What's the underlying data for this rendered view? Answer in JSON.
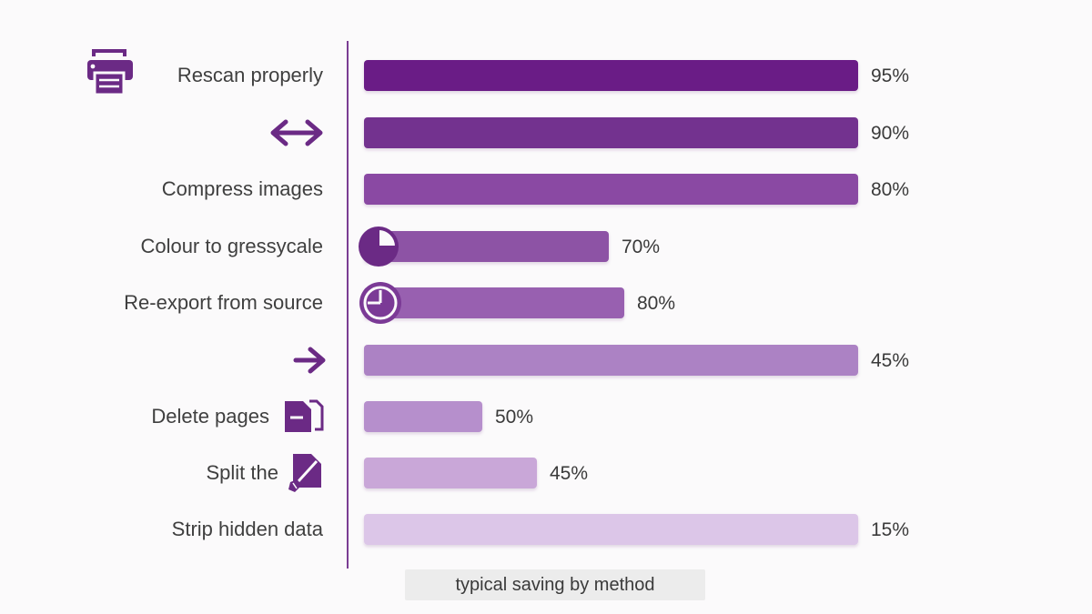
{
  "chart_data": {
    "type": "bar",
    "orientation": "horizontal",
    "categories": [
      "Rescan properly",
      "",
      "Compress images",
      "Colour to gressycale",
      "Re-export from source",
      "",
      "Delete pages",
      "Split the",
      "Strip hidden data"
    ],
    "values": [
      95,
      90,
      80,
      70,
      80,
      45,
      50,
      45,
      15
    ],
    "value_labels": [
      "95%",
      "90%",
      "80%",
      "70%",
      "80%",
      "45%",
      "50%",
      "45%",
      "15%"
    ],
    "icons": [
      "printer-icon",
      "double-arrow-icon",
      "",
      "pie-icon",
      "pie-icon",
      "arrow-right-icon",
      "delete-page-icon",
      "brush-icon",
      ""
    ],
    "caption": "typical saving by method",
    "grid": false,
    "colors": {
      "bars": [
        "#6a1f86",
        "#73308f",
        "#8a4aa3",
        "#8d52a5",
        "#9860b0",
        "#ac82c4",
        "#b68fcc",
        "#c9a7d8",
        "#dcc6e8"
      ],
      "icon": "#6b2a85",
      "axis": "#7b3d94",
      "label_text": "#3f3f3f"
    }
  }
}
